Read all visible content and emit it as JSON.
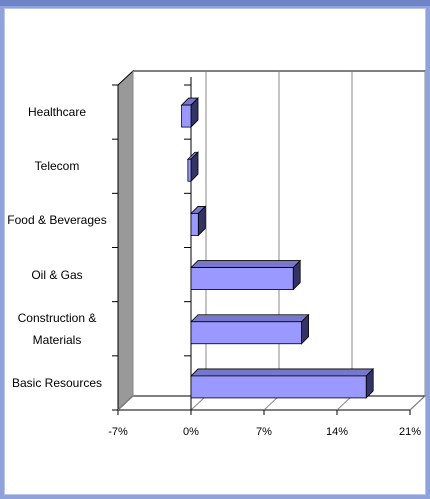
{
  "chart_data": {
    "type": "bar",
    "orientation": "horizontal",
    "categories": [
      "Healthcare",
      "Telecom",
      "Food & Beverages",
      "Oil & Gas",
      "Construction & Materials",
      "Basic Resources"
    ],
    "values": [
      -0.9,
      -0.3,
      0.7,
      9.8,
      10.6,
      16.8
    ],
    "color": "#9999ff",
    "xlim": [
      -7,
      21
    ],
    "xticks": [
      {
        "value": -7,
        "label": "-7%"
      },
      {
        "value": 0,
        "label": "0%"
      },
      {
        "value": 7,
        "label": "7%"
      },
      {
        "value": 14,
        "label": "14%"
      },
      {
        "value": 21,
        "label": "21%"
      }
    ],
    "grid": true
  }
}
